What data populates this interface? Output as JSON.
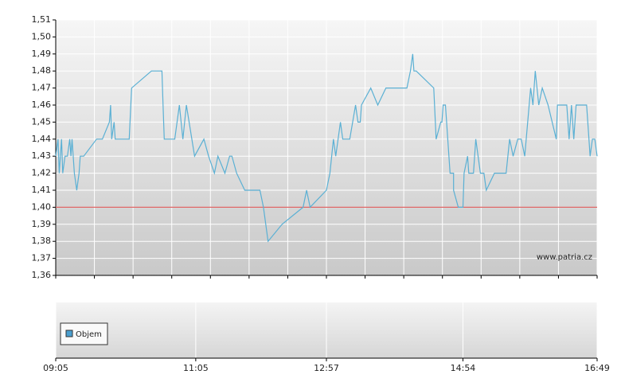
{
  "chart_data": {
    "type": "line",
    "x": [
      "09:05",
      "09:07",
      "09:08",
      "09:10",
      "09:11",
      "09:13",
      "09:15",
      "09:17",
      "09:18",
      "09:19",
      "09:21",
      "09:23",
      "09:25",
      "09:26",
      "09:29",
      "09:40",
      "09:45",
      "09:51",
      "09:52",
      "09:53",
      "09:55",
      "09:56",
      "10:08",
      "10:10",
      "10:27",
      "10:36",
      "10:37",
      "10:38",
      "10:47",
      "10:51",
      "10:54",
      "10:57",
      "11:04",
      "11:12",
      "11:16",
      "11:21",
      "11:24",
      "11:30",
      "11:34",
      "11:36",
      "11:40",
      "11:47",
      "12:00",
      "12:03",
      "12:07",
      "12:19",
      "12:37",
      "12:40",
      "12:43",
      "12:57",
      "13:00",
      "13:03",
      "13:05",
      "13:09",
      "13:11",
      "13:17",
      "13:22",
      "13:24",
      "13:26",
      "13:27",
      "13:35",
      "13:41",
      "13:48",
      "14:06",
      "14:09",
      "14:11",
      "14:12",
      "14:14",
      "14:29",
      "14:31",
      "14:35",
      "14:36",
      "14:37",
      "14:39",
      "14:41",
      "14:43",
      "14:46",
      "14:46",
      "14:50",
      "14:54",
      "14:55",
      "14:58",
      "14:59",
      "15:03",
      "15:05",
      "15:09",
      "15:12",
      "15:14",
      "15:21",
      "15:31",
      "15:34",
      "15:37",
      "15:41",
      "15:44",
      "15:47",
      "15:52",
      "15:54",
      "15:56",
      "15:59",
      "16:02",
      "16:07",
      "16:14",
      "16:15",
      "16:23",
      "16:25",
      "16:27",
      "16:29",
      "16:31",
      "16:40",
      "16:43",
      "16:45",
      "16:47",
      "16:49"
    ],
    "values": [
      1.43,
      1.44,
      1.42,
      1.44,
      1.42,
      1.43,
      1.43,
      1.44,
      1.43,
      1.44,
      1.42,
      1.41,
      1.42,
      1.43,
      1.43,
      1.44,
      1.44,
      1.45,
      1.46,
      1.44,
      1.45,
      1.44,
      1.44,
      1.47,
      1.48,
      1.48,
      1.46,
      1.44,
      1.44,
      1.46,
      1.44,
      1.46,
      1.43,
      1.44,
      1.43,
      1.42,
      1.43,
      1.42,
      1.43,
      1.43,
      1.42,
      1.41,
      1.41,
      1.4,
      1.38,
      1.39,
      1.4,
      1.41,
      1.4,
      1.41,
      1.42,
      1.44,
      1.43,
      1.45,
      1.44,
      1.44,
      1.46,
      1.45,
      1.45,
      1.46,
      1.47,
      1.46,
      1.47,
      1.47,
      1.48,
      1.49,
      1.48,
      1.48,
      1.47,
      1.44,
      1.45,
      1.45,
      1.46,
      1.46,
      1.44,
      1.42,
      1.42,
      1.41,
      1.4,
      1.4,
      1.42,
      1.43,
      1.42,
      1.42,
      1.44,
      1.42,
      1.42,
      1.41,
      1.42,
      1.42,
      1.44,
      1.43,
      1.44,
      1.44,
      1.43,
      1.47,
      1.46,
      1.48,
      1.46,
      1.47,
      1.46,
      1.44,
      1.46,
      1.46,
      1.44,
      1.46,
      1.44,
      1.46,
      1.46,
      1.43,
      1.44,
      1.44,
      1.43
    ],
    "color": "#5ab0d4",
    "xlim": [
      "09:05",
      "16:49"
    ],
    "xticks": [
      "09:05",
      "11:05",
      "12:57",
      "14:54",
      "16:49"
    ],
    "ylim": [
      1.36,
      1.51
    ],
    "yticks": [
      {
        "value": 1.36,
        "label": "1,36"
      },
      {
        "value": 1.37,
        "label": "1,37"
      },
      {
        "value": 1.38,
        "label": "1,38"
      },
      {
        "value": 1.39,
        "label": "1,39"
      },
      {
        "value": 1.4,
        "label": "1,40"
      },
      {
        "value": 1.41,
        "label": "1,41"
      },
      {
        "value": 1.42,
        "label": "1,42"
      },
      {
        "value": 1.43,
        "label": "1,43"
      },
      {
        "value": 1.44,
        "label": "1,44"
      },
      {
        "value": 1.45,
        "label": "1,45"
      },
      {
        "value": 1.46,
        "label": "1,46"
      },
      {
        "value": 1.47,
        "label": "1,47"
      },
      {
        "value": 1.48,
        "label": "1,48"
      },
      {
        "value": 1.49,
        "label": "1,49"
      },
      {
        "value": 1.5,
        "label": "1,50"
      },
      {
        "value": 1.51,
        "label": "1,51"
      }
    ],
    "reference_line": {
      "value": 1.4,
      "color": "#e06666"
    },
    "grid": true,
    "watermark": "www.patria.cz",
    "volume": {
      "name": "Objem",
      "color": "#4a9fd0"
    }
  }
}
